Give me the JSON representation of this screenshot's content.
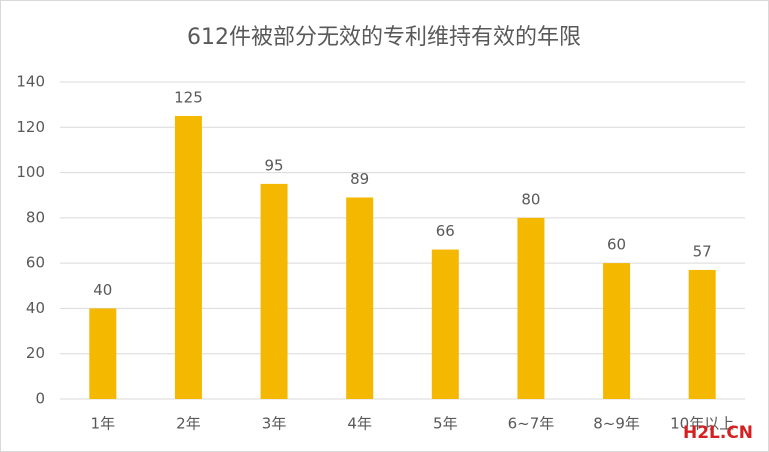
{
  "chart_data": {
    "type": "bar",
    "title": "612件被部分无效的专利维持有效的年限",
    "categories": [
      "1年",
      "2年",
      "3年",
      "4年",
      "5年",
      "6~7年",
      "8~9年",
      "10年以上"
    ],
    "values": [
      40,
      125,
      95,
      89,
      66,
      80,
      60,
      57
    ],
    "color": "#f5b800",
    "ylim": [
      0,
      140
    ],
    "yticks": [
      0,
      20,
      40,
      60,
      80,
      100,
      120,
      140
    ],
    "grid": true,
    "data_labels": true
  },
  "watermark": "H2L.CN"
}
